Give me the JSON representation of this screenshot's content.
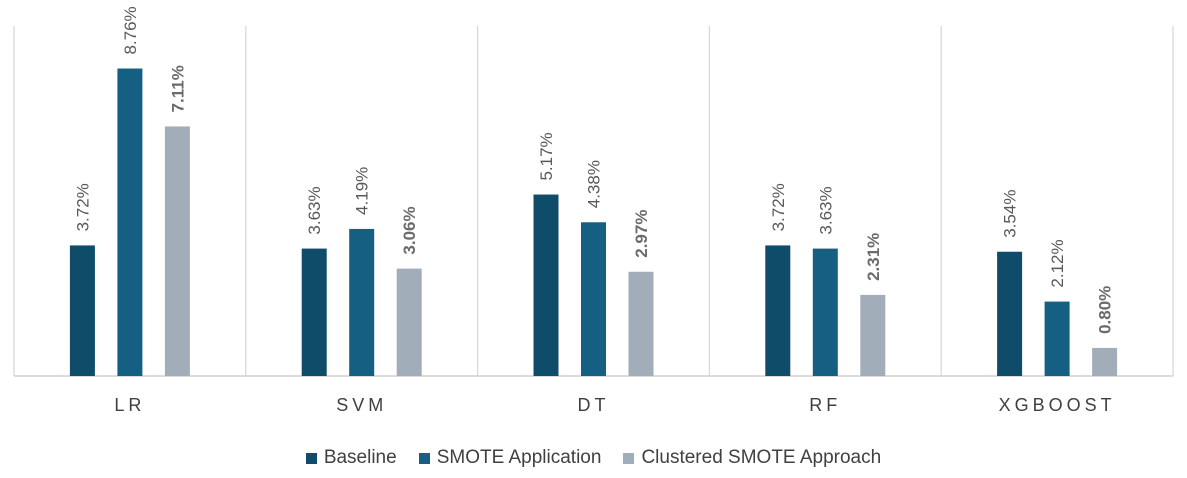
{
  "chart_data": {
    "type": "bar",
    "categories": [
      "LR",
      "SVM",
      "DT",
      "RF",
      "XGBOOST"
    ],
    "series": [
      {
        "name": "Baseline",
        "color": "#0f4c6a",
        "values": [
          3.72,
          3.63,
          5.17,
          3.72,
          3.54
        ],
        "labels": [
          "3.72%",
          "3.63%",
          "5.17%",
          "3.72%",
          "3.54%"
        ],
        "bold_labels": false
      },
      {
        "name": "SMOTE Application",
        "color": "#155f82",
        "values": [
          8.76,
          4.19,
          4.38,
          3.63,
          2.12
        ],
        "labels": [
          "8.76%",
          "4.19%",
          "4.38%",
          "3.63%",
          "2.12%"
        ],
        "bold_labels": false
      },
      {
        "name": "Clustered SMOTE Approach",
        "color": "#a1aeb9",
        "values": [
          7.11,
          3.06,
          2.97,
          2.31,
          0.8
        ],
        "labels": [
          "7.11%",
          "3.06%",
          "2.97%",
          "2.31%",
          "0.80%"
        ],
        "bold_labels": true
      }
    ],
    "title": "",
    "xlabel": "",
    "ylabel": "",
    "ylim": [
      0,
      10
    ],
    "grid": false,
    "category_separators": true,
    "legend_position": "bottom"
  }
}
